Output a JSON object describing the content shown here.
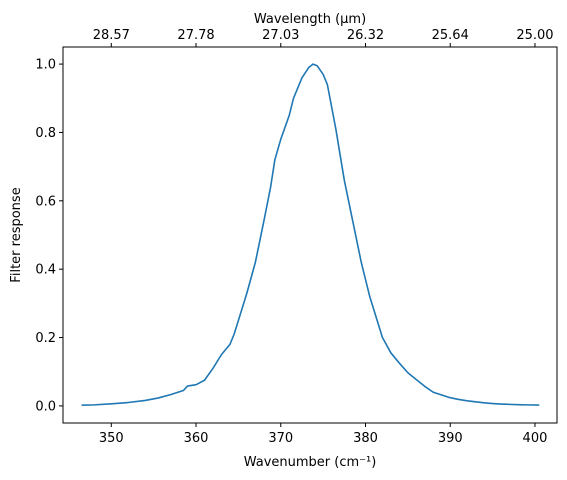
{
  "chart_data": {
    "type": "line",
    "xlabel": "Wavenumber (cm⁻¹)",
    "ylabel": "Filter response",
    "top_xlabel": "Wavelength (μm)",
    "xlim": [
      344.3,
      402.6
    ],
    "ylim": [
      -0.05,
      1.05
    ],
    "x_ticks": [
      350,
      360,
      370,
      380,
      390,
      400
    ],
    "y_ticks": [
      0.0,
      0.2,
      0.4,
      0.6,
      0.8,
      1.0
    ],
    "top_ticks": [
      {
        "label": "28.57",
        "wavenumber": 350.0
      },
      {
        "label": "27.78",
        "wavenumber": 360.0
      },
      {
        "label": "27.03",
        "wavenumber": 370.0
      },
      {
        "label": "26.32",
        "wavenumber": 380.0
      },
      {
        "label": "25.64",
        "wavenumber": 390.0
      },
      {
        "label": "25.00",
        "wavenumber": 400.0
      }
    ],
    "grid": false,
    "series": [
      {
        "color": "#1f77b4",
        "x": [
          346.5,
          348,
          350,
          352,
          354,
          355.5,
          357,
          358.5,
          359,
          360,
          361,
          362,
          363,
          364,
          364.5,
          365,
          366,
          367,
          368,
          368.8,
          369.3,
          370,
          371,
          371.5,
          372.5,
          373.3,
          373.8,
          374.3,
          375,
          375.5,
          376.5,
          377.5,
          378.5,
          379.5,
          380.5,
          381.5,
          382,
          383,
          384,
          385,
          386,
          387,
          388,
          389,
          390,
          391,
          392,
          393,
          394,
          395,
          396,
          397,
          398,
          399,
          400.5
        ],
        "y": [
          0.002,
          0.003,
          0.006,
          0.01,
          0.016,
          0.023,
          0.033,
          0.045,
          0.058,
          0.062,
          0.075,
          0.11,
          0.15,
          0.18,
          0.21,
          0.25,
          0.33,
          0.42,
          0.54,
          0.64,
          0.72,
          0.78,
          0.85,
          0.9,
          0.96,
          0.99,
          1.0,
          0.995,
          0.97,
          0.94,
          0.81,
          0.66,
          0.54,
          0.42,
          0.32,
          0.24,
          0.2,
          0.155,
          0.125,
          0.097,
          0.077,
          0.057,
          0.04,
          0.032,
          0.024,
          0.019,
          0.015,
          0.012,
          0.009,
          0.007,
          0.0055,
          0.0045,
          0.0035,
          0.003,
          0.0025
        ]
      }
    ]
  }
}
